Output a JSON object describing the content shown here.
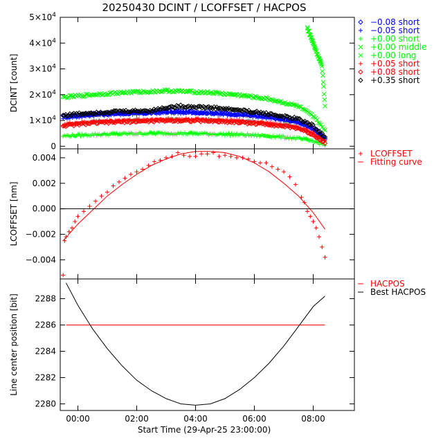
{
  "title": "20250430 DCINT / LCOFFSET / HACPOS",
  "xlabel": "Start Time (29-Apr-25 23:00:00)",
  "xticks": [
    "00:00",
    "02:00",
    "04:00",
    "06:00",
    "08:00"
  ],
  "colors": {
    "black": "#000000",
    "blue": "#0000ff",
    "green": "#00ff00",
    "red": "#ff0000"
  },
  "chart_data": [
    {
      "type": "scatter",
      "ylabel": "DCINT [count]",
      "x_units": "hours since 29-Apr-25 23:00:00",
      "xlim": [
        -0.6,
        9.4
      ],
      "ylim": [
        -1000,
        50000
      ],
      "yticks": [
        0,
        10000,
        20000,
        30000,
        40000,
        50000
      ],
      "ytick_labels": [
        {
          "mant": "0",
          "exp": ""
        },
        {
          "mant": "1×10",
          "exp": "4"
        },
        {
          "mant": "2×10",
          "exp": "4"
        },
        {
          "mant": "3×10",
          "exp": "4"
        },
        {
          "mant": "4×10",
          "exp": "4"
        },
        {
          "mant": "5×10",
          "exp": "4"
        }
      ],
      "legend_placement": "right",
      "series": [
        {
          "name": "−0.08 short",
          "marker": "◇",
          "color": "#0000ff",
          "x": [
            -0.5,
            0.5,
            1.5,
            2.5,
            3.0,
            3.5,
            4.5,
            5.5,
            6.5,
            7.5,
            8.0,
            8.4
          ],
          "y": [
            11500,
            12500,
            12800,
            13000,
            13500,
            13500,
            13000,
            12500,
            11500,
            9500,
            7000,
            3000
          ]
        },
        {
          "name": "−0.05 short",
          "marker": "+",
          "color": "#0000ff",
          "x": [
            -0.5,
            0.5,
            1.5,
            2.5,
            3.0,
            3.5,
            4.5,
            5.5,
            6.5,
            7.5,
            8.0,
            8.4
          ],
          "y": [
            11000,
            12000,
            12500,
            12800,
            13000,
            13000,
            12800,
            12000,
            11000,
            9000,
            6500,
            2800
          ]
        },
        {
          "name": "+0.00 short",
          "marker": "+",
          "color": "#00ff00",
          "x": [
            -0.5,
            0.5,
            1.5,
            2.5,
            3.0,
            3.5,
            4.5,
            5.5,
            6.5,
            7.5,
            8.0,
            8.4
          ],
          "y": [
            4000,
            4500,
            4800,
            5000,
            5000,
            5000,
            4800,
            4500,
            4000,
            3000,
            2000,
            500
          ]
        },
        {
          "name": "+0.00 middle",
          "marker": "×",
          "color": "#00ff00",
          "x": [
            7.8,
            7.9,
            8.0,
            8.1,
            8.2,
            8.3,
            8.4
          ],
          "y": [
            46000,
            43000,
            40000,
            37000,
            34000,
            31000,
            16000
          ]
        },
        {
          "name": "+0.00 long",
          "marker": "×",
          "color": "#00ff00",
          "x": [
            -0.5,
            0.5,
            1.5,
            2.5,
            3.0,
            3.5,
            4.5,
            5.5,
            6.5,
            7.5,
            8.0,
            8.4
          ],
          "y": [
            19000,
            20000,
            20800,
            21200,
            21500,
            21300,
            20800,
            19800,
            18300,
            15500,
            11500,
            6500
          ]
        },
        {
          "name": "+0.05 short",
          "marker": "+",
          "color": "#ff0000",
          "x": [
            -0.5,
            0.5,
            1.5,
            2.5,
            3.0,
            3.5,
            4.5,
            5.5,
            6.5,
            7.5,
            8.0,
            8.4
          ],
          "y": [
            8500,
            9500,
            10000,
            10300,
            10500,
            10500,
            10300,
            9800,
            9000,
            7500,
            5000,
            2000
          ]
        },
        {
          "name": "+0.08 short",
          "marker": "◇",
          "color": "#ff0000",
          "x": [
            -0.5,
            0.5,
            1.5,
            2.5,
            3.0,
            3.5,
            4.5,
            5.5,
            6.5,
            7.5,
            8.0,
            8.4
          ],
          "y": [
            8000,
            9000,
            9500,
            9800,
            10000,
            10000,
            9800,
            9300,
            8500,
            7000,
            4500,
            1500
          ]
        },
        {
          "name": "+0.35 short",
          "marker": "◇",
          "color": "#000000",
          "x": [
            -0.5,
            0.5,
            1.5,
            2.5,
            3.0,
            3.5,
            4.5,
            5.5,
            6.5,
            7.5,
            8.0,
            8.4
          ],
          "y": [
            12000,
            13000,
            13500,
            13800,
            15000,
            15500,
            15000,
            14000,
            12500,
            10500,
            8000,
            3500
          ]
        }
      ]
    },
    {
      "type": "scatter",
      "ylabel": "LCOFFSET [nm]",
      "x_units": "hours since 29-Apr-25 23:00:00",
      "xlim": [
        -0.6,
        9.4
      ],
      "ylim": [
        -0.0055,
        0.0047
      ],
      "yticks": [
        -0.004,
        -0.002,
        0.0,
        0.002,
        0.004
      ],
      "ytick_labels": [
        "−0.004",
        "−0.002",
        "0.000",
        "0.002",
        "0.004"
      ],
      "zero_line": true,
      "legend_placement": "right",
      "series": [
        {
          "name": "LCOFFSET",
          "marker": "+",
          "color": "#ff0000",
          "x": [
            -0.5,
            -0.45,
            -0.4,
            -0.3,
            -0.2,
            -0.1,
            0.0,
            0.2,
            0.4,
            0.6,
            0.8,
            1.0,
            1.2,
            1.4,
            1.6,
            1.8,
            2.0,
            2.2,
            2.4,
            2.6,
            2.8,
            3.0,
            3.2,
            3.4,
            3.6,
            3.8,
            4.0,
            4.2,
            4.4,
            4.6,
            4.8,
            5.0,
            5.2,
            5.4,
            5.6,
            5.8,
            6.0,
            6.2,
            6.4,
            6.6,
            6.8,
            7.0,
            7.2,
            7.4,
            7.6,
            7.7,
            7.8,
            7.9,
            8.0,
            8.1,
            8.2,
            8.3,
            8.4
          ],
          "y": [
            -0.0052,
            -0.0025,
            -0.0022,
            -0.0018,
            -0.0015,
            -0.001,
            -0.0006,
            -0.0002,
            0.0002,
            0.0006,
            0.001,
            0.0013,
            0.0018,
            0.0021,
            0.0024,
            0.0027,
            0.0029,
            0.0031,
            0.0034,
            0.0037,
            0.0038,
            0.004,
            0.0041,
            0.0044,
            0.0042,
            0.0041,
            0.0041,
            0.0043,
            0.0043,
            0.0044,
            0.0041,
            0.0042,
            0.0041,
            0.004,
            0.004,
            0.0039,
            0.0037,
            0.0036,
            0.0036,
            0.0033,
            0.0031,
            0.0029,
            0.0025,
            0.0019,
            0.0009,
            0.0005,
            -0.0002,
            -0.0006,
            -0.001,
            -0.0015,
            -0.0022,
            -0.003,
            -0.0038
          ]
        },
        {
          "name": "Fitting curve",
          "type": "line",
          "color": "#ff0000",
          "x": [
            -0.5,
            0.0,
            0.5,
            1.0,
            1.5,
            2.0,
            2.5,
            3.0,
            3.5,
            4.0,
            4.5,
            5.0,
            5.5,
            6.0,
            6.5,
            7.0,
            7.5,
            8.0,
            8.4
          ],
          "y": [
            -0.0025,
            -0.0012,
            -0.0001,
            0.001,
            0.0019,
            0.0027,
            0.0034,
            0.0039,
            0.0043,
            0.0045,
            0.0045,
            0.0044,
            0.0041,
            0.0036,
            0.0029,
            0.002,
            0.001,
            -0.0003,
            -0.0016
          ]
        }
      ]
    },
    {
      "type": "line",
      "ylabel": "Line center position [bit]",
      "x_units": "hours since 29-Apr-25 23:00:00",
      "xlim": [
        -0.6,
        9.4
      ],
      "ylim": [
        2279.5,
        2289.5
      ],
      "yticks": [
        2280,
        2282,
        2284,
        2286,
        2288
      ],
      "ytick_labels": [
        "2280",
        "2282",
        "2284",
        "2286",
        "2288"
      ],
      "legend_placement": "right",
      "series": [
        {
          "name": "HACPOS",
          "color": "#ff0000",
          "x": [
            -0.4,
            8.4
          ],
          "y": [
            2286.0,
            2286.0
          ]
        },
        {
          "name": "Best HACPOS",
          "color": "#000000",
          "x": [
            -0.4,
            0.0,
            0.5,
            1.0,
            1.5,
            2.0,
            2.5,
            3.0,
            3.5,
            4.0,
            4.5,
            5.0,
            5.5,
            6.0,
            6.5,
            7.0,
            7.5,
            8.0,
            8.4
          ],
          "y": [
            2289.2,
            2287.5,
            2285.7,
            2284.2,
            2282.9,
            2281.8,
            2281.0,
            2280.4,
            2280.0,
            2279.9,
            2280.0,
            2280.4,
            2281.1,
            2282.0,
            2283.1,
            2284.4,
            2285.9,
            2287.4,
            2288.2
          ]
        }
      ]
    }
  ]
}
